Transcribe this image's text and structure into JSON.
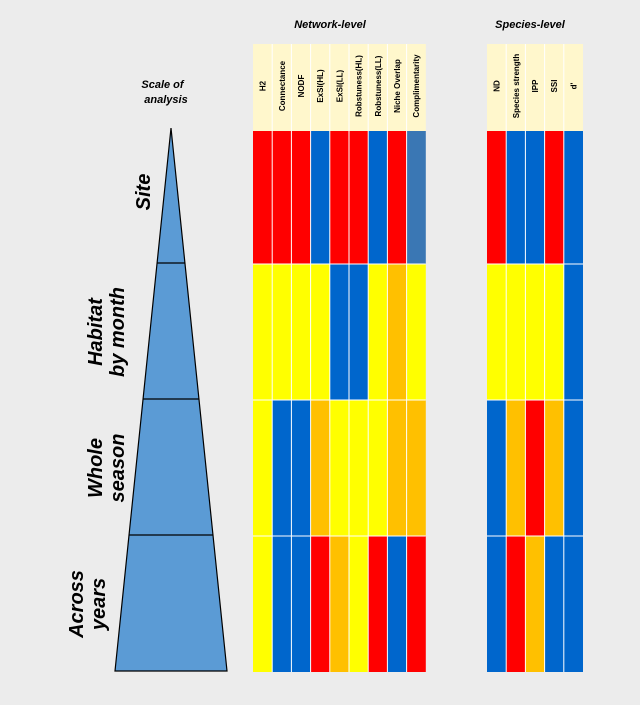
{
  "scale_title": [
    "Scale of",
    "analysis"
  ],
  "group_titles": {
    "network": "Network-level",
    "species": "Species-level"
  },
  "scales": [
    {
      "label": [
        "Site"
      ]
    },
    {
      "label": [
        "Habitat",
        "by month"
      ]
    },
    {
      "label": [
        "Whole",
        "season"
      ]
    },
    {
      "label": [
        "Across",
        "years"
      ]
    }
  ],
  "colors": {
    "R": "#ff0000",
    "B": "#0066cc",
    "Y": "#ffff00",
    "O": "#ffc000",
    "S": "#3a77b4",
    "header_bg": "#fff7cc",
    "triangle": "#5b9bd5",
    "divider": "#ffffff"
  },
  "network_columns": [
    {
      "name": "H2",
      "cells": [
        "R",
        "Y",
        "Y",
        "Y"
      ]
    },
    {
      "name": "Connectance",
      "cells": [
        "R",
        "Y",
        "B",
        "B"
      ]
    },
    {
      "name": "NODF",
      "cells": [
        "R",
        "Y",
        "B",
        "B"
      ]
    },
    {
      "name": "ExSl(HL)",
      "cells": [
        "B",
        "Y",
        "O",
        "R"
      ]
    },
    {
      "name": "ExSl(LL)",
      "cells": [
        "R",
        "B",
        "Y",
        "O"
      ]
    },
    {
      "name": "Robstuness(HL)",
      "cells": [
        "R",
        "B",
        "Y",
        "Y"
      ]
    },
    {
      "name": "Robstuness(LL)",
      "cells": [
        "B",
        "Y",
        "Y",
        "R"
      ]
    },
    {
      "name": "Niche Overlap",
      "cells": [
        "R",
        "O",
        "O",
        "B"
      ]
    },
    {
      "name": "Complimentarity",
      "cells": [
        "S",
        "Y",
        "O",
        "R"
      ]
    }
  ],
  "species_columns": [
    {
      "name": "ND",
      "cells": [
        "R",
        "Y",
        "B",
        "B"
      ]
    },
    {
      "name": "Species strength",
      "cells": [
        "B",
        "Y",
        "O",
        "R"
      ]
    },
    {
      "name": "IPP",
      "cells": [
        "B",
        "Y",
        "R",
        "O"
      ]
    },
    {
      "name": "SSI",
      "cells": [
        "R",
        "Y",
        "O",
        "B"
      ]
    },
    {
      "name": "d'",
      "cells": [
        "B",
        "B",
        "B",
        "B"
      ]
    }
  ]
}
